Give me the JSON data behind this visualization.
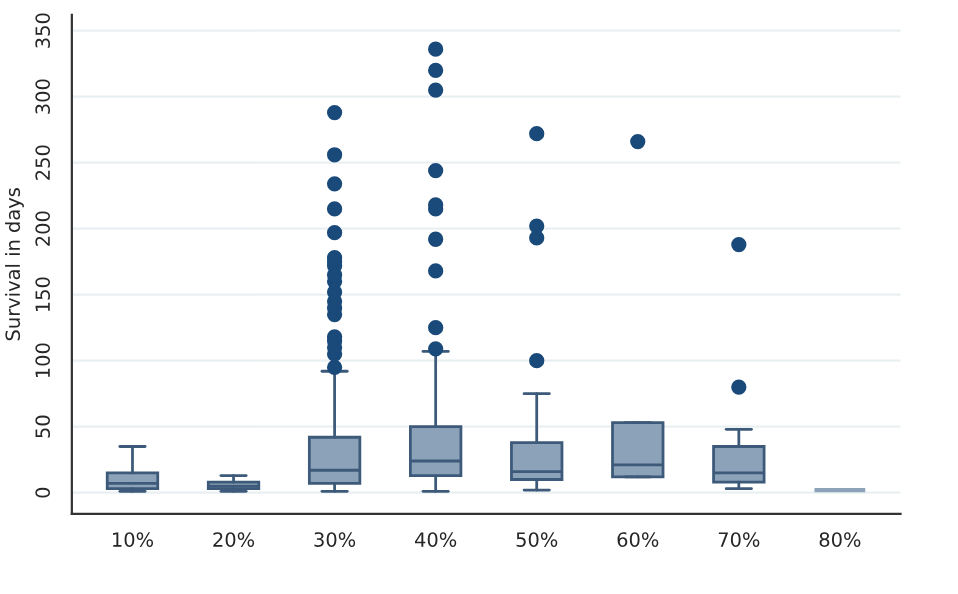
{
  "chart_data": {
    "type": "box",
    "ylabel": "Survival in days",
    "categories": [
      "10%",
      "20%",
      "30%",
      "40%",
      "50%",
      "60%",
      "70%",
      "80%"
    ],
    "boxes": [
      {
        "low": 1,
        "q1": 3,
        "median": 7,
        "q3": 15,
        "high": 35
      },
      {
        "low": 1,
        "q1": 3,
        "median": 5,
        "q3": 8,
        "high": 13
      },
      {
        "low": 1,
        "q1": 7,
        "median": 17,
        "q3": 42,
        "high": 92,
        "outliers": [
          95,
          105,
          110,
          115,
          118,
          135,
          140,
          145,
          152,
          160,
          165,
          172,
          175,
          178,
          197,
          215,
          234,
          256,
          288
        ]
      },
      {
        "low": 1,
        "q1": 13,
        "median": 24,
        "q3": 50,
        "high": 107,
        "outliers": [
          109,
          125,
          168,
          192,
          215,
          218,
          244,
          305,
          320,
          336
        ]
      },
      {
        "low": 2,
        "q1": 10,
        "median": 16,
        "q3": 38,
        "high": 75,
        "outliers": [
          100,
          193,
          202,
          272
        ]
      },
      {
        "low": 12,
        "q1": 12,
        "median": 21,
        "q3": 53,
        "high": 53,
        "outliers": [
          266
        ]
      },
      {
        "low": 3,
        "q1": 8,
        "median": 15,
        "q3": 35,
        "high": 48,
        "outliers": [
          80,
          188
        ]
      },
      {
        "low": 2,
        "q1": 2,
        "median": 2,
        "q3": 2,
        "high": 2
      }
    ],
    "color": "#8ca2b9",
    "ylim": [
      -16,
      362
    ],
    "yticks": [
      0,
      50,
      100,
      150,
      200,
      250,
      300,
      350
    ],
    "grid": "y"
  }
}
